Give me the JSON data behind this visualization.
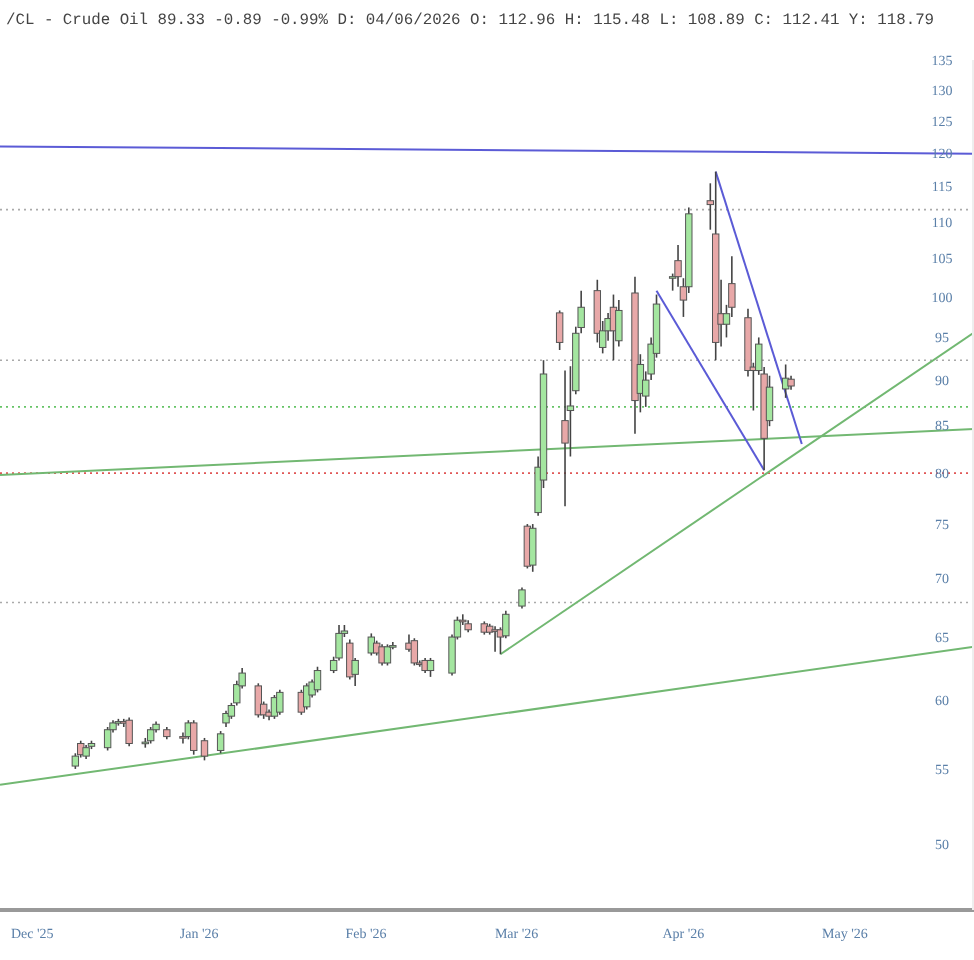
{
  "chart_data": {
    "type": "candlestick",
    "title": "/CL - Crude Oil 89.33 -0.89 -0.99% D: 04/06/2026 O: 112.96 H: 115.48 L: 108.89 C: 112.41 Y: 118.79",
    "x": [
      "2025-12-09",
      "2025-12-10",
      "2025-12-11",
      "2025-12-12",
      "2025-12-15",
      "2025-12-16",
      "2025-12-17",
      "2025-12-18",
      "2025-12-19",
      "2025-12-22",
      "2025-12-23",
      "2025-12-24",
      "2025-12-26",
      "2025-12-29",
      "2025-12-30",
      "2025-12-31",
      "2026-01-02",
      "2026-01-05",
      "2026-01-06",
      "2026-01-07",
      "2026-01-08",
      "2026-01-09",
      "2026-01-12",
      "2026-01-13",
      "2026-01-14",
      "2026-01-15",
      "2026-01-16",
      "2026-01-20",
      "2026-01-21",
      "2026-01-22",
      "2026-01-23",
      "2026-01-26",
      "2026-01-27",
      "2026-01-28",
      "2026-01-29",
      "2026-01-30",
      "2026-02-02",
      "2026-02-03",
      "2026-02-04",
      "2026-02-05",
      "2026-02-06",
      "2026-02-09",
      "2026-02-10",
      "2026-02-11",
      "2026-02-12",
      "2026-02-13",
      "2026-02-17",
      "2026-02-18",
      "2026-02-19",
      "2026-02-20",
      "2026-02-23",
      "2026-02-24",
      "2026-02-25",
      "2026-02-26",
      "2026-02-27",
      "2026-03-02",
      "2026-03-03",
      "2026-03-04",
      "2026-03-05",
      "2026-03-06",
      "2026-03-09",
      "2026-03-10",
      "2026-03-11",
      "2026-03-12",
      "2026-03-13",
      "2026-03-16",
      "2026-03-17",
      "2026-03-18",
      "2026-03-19",
      "2026-03-20",
      "2026-03-23",
      "2026-03-24",
      "2026-03-25",
      "2026-03-26",
      "2026-03-27",
      "2026-03-30",
      "2026-03-31",
      "2026-04-01",
      "2026-04-02",
      "2026-04-06",
      "2026-04-07",
      "2026-04-08",
      "2026-04-09",
      "2026-04-10",
      "2026-04-13",
      "2026-04-14",
      "2026-04-15",
      "2026-04-16",
      "2026-04-17",
      "2026-04-20",
      "2026-04-21"
    ],
    "ohlc": [
      [
        55.2,
        56.1,
        55.0,
        55.9
      ],
      [
        56.8,
        57.0,
        55.8,
        56.0
      ],
      [
        55.9,
        56.7,
        55.7,
        56.5
      ],
      [
        56.6,
        57.0,
        56.4,
        56.8
      ],
      [
        56.5,
        58.0,
        56.3,
        57.8
      ],
      [
        57.8,
        58.5,
        57.6,
        58.3
      ],
      [
        58.3,
        58.6,
        58.1,
        58.4
      ],
      [
        58.4,
        58.6,
        58.0,
        58.3
      ],
      [
        58.5,
        58.7,
        56.6,
        56.8
      ],
      [
        56.8,
        57.2,
        56.5,
        56.9
      ],
      [
        57.0,
        58.0,
        56.8,
        57.8
      ],
      [
        57.8,
        58.4,
        57.6,
        58.2
      ],
      [
        57.8,
        58.0,
        57.1,
        57.3
      ],
      [
        57.3,
        57.6,
        56.8,
        57.2
      ],
      [
        57.3,
        58.5,
        57.1,
        58.3
      ],
      [
        58.3,
        58.5,
        56.0,
        56.3
      ],
      [
        57.0,
        57.2,
        55.6,
        55.9
      ],
      [
        56.3,
        57.7,
        56.1,
        57.5
      ],
      [
        58.3,
        59.2,
        58.0,
        59.0
      ],
      [
        58.8,
        59.8,
        58.6,
        59.6
      ],
      [
        59.8,
        61.5,
        59.6,
        61.2
      ],
      [
        61.1,
        62.5,
        60.9,
        62.1
      ],
      [
        61.1,
        61.3,
        58.7,
        58.9
      ],
      [
        59.7,
        59.9,
        58.6,
        58.9
      ],
      [
        59.1,
        59.3,
        58.5,
        58.8
      ],
      [
        58.8,
        60.4,
        58.6,
        60.2
      ],
      [
        59.1,
        60.8,
        58.9,
        60.6
      ],
      [
        60.6,
        60.8,
        58.9,
        59.1
      ],
      [
        59.5,
        61.3,
        59.3,
        61.1
      ],
      [
        60.4,
        61.6,
        60.2,
        61.4
      ],
      [
        60.8,
        62.6,
        60.6,
        62.3
      ],
      [
        62.3,
        63.4,
        62.1,
        63.1
      ],
      [
        63.3,
        66.0,
        63.1,
        65.3
      ],
      [
        65.3,
        66.0,
        65.0,
        65.5
      ],
      [
        64.5,
        64.8,
        61.6,
        61.8
      ],
      [
        62.0,
        63.3,
        61.1,
        63.1
      ],
      [
        63.7,
        65.3,
        63.5,
        65.0
      ],
      [
        64.5,
        64.7,
        63.5,
        63.7
      ],
      [
        64.2,
        64.4,
        62.7,
        62.9
      ],
      [
        62.9,
        64.4,
        62.7,
        64.2
      ],
      [
        64.2,
        64.6,
        64.0,
        64.3
      ],
      [
        64.5,
        65.2,
        63.8,
        64.0
      ],
      [
        64.7,
        64.9,
        62.7,
        62.9
      ],
      [
        62.9,
        63.1,
        62.6,
        62.8
      ],
      [
        63.1,
        63.3,
        62.1,
        62.3
      ],
      [
        62.3,
        63.3,
        61.8,
        63.1
      ],
      [
        62.1,
        65.2,
        61.9,
        65.0
      ],
      [
        65.0,
        66.7,
        64.8,
        66.4
      ],
      [
        66.4,
        66.9,
        66.0,
        66.3
      ],
      [
        66.1,
        66.4,
        65.4,
        65.6
      ],
      [
        66.1,
        66.3,
        65.2,
        65.4
      ],
      [
        65.9,
        66.1,
        65.2,
        65.4
      ],
      [
        65.6,
        65.9,
        63.8,
        65.5
      ],
      [
        65.6,
        65.8,
        63.6,
        65.0
      ],
      [
        65.1,
        67.2,
        64.9,
        66.9
      ],
      [
        67.6,
        69.2,
        67.4,
        69.0
      ],
      [
        74.8,
        75.0,
        70.9,
        71.1
      ],
      [
        71.2,
        75.0,
        70.6,
        74.6
      ],
      [
        76.1,
        81.7,
        75.8,
        80.6
      ],
      [
        79.3,
        92.3,
        78.5,
        90.7
      ],
      [
        98.0,
        98.3,
        93.5,
        94.4
      ],
      [
        85.5,
        91.1,
        76.7,
        83.1
      ],
      [
        86.6,
        91.6,
        81.7,
        87.1
      ],
      [
        88.8,
        96.3,
        88.4,
        95.5
      ],
      [
        96.2,
        100.8,
        95.5,
        98.7
      ],
      [
        100.8,
        102.2,
        94.4,
        95.5
      ],
      [
        93.8,
        97.0,
        93.1,
        95.8
      ],
      [
        95.8,
        98.0,
        94.6,
        97.3
      ],
      [
        98.7,
        100.3,
        92.3,
        95.8
      ],
      [
        94.6,
        99.6,
        93.9,
        98.3
      ],
      [
        100.5,
        102.6,
        84.1,
        87.7
      ],
      [
        88.5,
        93.0,
        86.4,
        91.8
      ],
      [
        88.2,
        91.0,
        87.0,
        90.0
      ],
      [
        90.7,
        95.0,
        90.0,
        94.2
      ],
      [
        93.1,
        100.3,
        92.6,
        99.1
      ],
      [
        102.4,
        103.0,
        100.8,
        102.6
      ],
      [
        104.7,
        106.8,
        101.3,
        102.6
      ],
      [
        101.3,
        102.4,
        97.5,
        99.6
      ],
      [
        101.3,
        112.0,
        100.5,
        111.1
      ],
      [
        112.96,
        115.48,
        108.89,
        112.41
      ],
      [
        108.3,
        117.2,
        92.3,
        94.4
      ],
      [
        97.9,
        102.2,
        93.9,
        96.6
      ],
      [
        96.6,
        99.0,
        95.0,
        97.9
      ],
      [
        101.7,
        105.3,
        97.5,
        98.7
      ],
      [
        97.4,
        98.5,
        90.4,
        91.1
      ],
      [
        91.5,
        92.0,
        86.6,
        91.1
      ],
      [
        91.1,
        95.0,
        90.6,
        94.2
      ],
      [
        90.7,
        91.5,
        80.3,
        83.6
      ],
      [
        85.5,
        90.5,
        84.9,
        89.2
      ],
      [
        89.0,
        91.8,
        88.0,
        90.22
      ],
      [
        90.1,
        90.5,
        88.9,
        89.33
      ]
    ],
    "series": [
      {
        "type": "line",
        "color": "#5b5bd6",
        "x": [
          "2025-11-25",
          "2026-05-25"
        ],
        "values": [
          121.0,
          119.9
        ]
      },
      {
        "type": "line",
        "color": "#72b872",
        "x": [
          "2025-11-25",
          "2026-05-25"
        ],
        "values": [
          79.8,
          84.6
        ]
      },
      {
        "type": "line",
        "color": "#72b872",
        "x": [
          "2025-11-25",
          "2026-05-25"
        ],
        "values": [
          53.9,
          64.2
        ]
      },
      {
        "type": "line",
        "color": "#72b872",
        "x": [
          "2026-02-26",
          "2026-05-25"
        ],
        "values": [
          63.6,
          95.6
        ]
      },
      {
        "type": "line",
        "color": "#5b5bd6",
        "x": [
          "2026-04-07",
          "2026-04-23"
        ],
        "values": [
          117.2,
          83.0
        ]
      },
      {
        "type": "line",
        "color": "#5b5bd6",
        "x": [
          "2026-03-27",
          "2026-04-16"
        ],
        "values": [
          100.8,
          80.3
        ]
      }
    ],
    "ref_lines": [
      {
        "axis": "y",
        "value": 111.7,
        "color": "#aaaaaa",
        "line_style": "dotted"
      },
      {
        "axis": "y",
        "value": 92.3,
        "color": "#aaaaaa",
        "line_style": "dotted"
      },
      {
        "axis": "y",
        "value": 87.0,
        "color": "#66c466",
        "line_style": "dotted"
      },
      {
        "axis": "y",
        "value": 80.0,
        "color": "#e05555",
        "line_style": "dotted"
      },
      {
        "axis": "y",
        "value": 67.9,
        "color": "#aaaaaa",
        "line_style": "dotted"
      }
    ],
    "log": true,
    "ylim": [
      46,
      135
    ],
    "yticks": [
      50,
      55,
      60,
      65,
      70,
      75,
      80,
      85,
      90,
      95,
      100,
      105,
      110,
      115,
      120,
      125,
      130,
      135
    ],
    "xlim": [
      "2025-11-25",
      "2026-05-25"
    ],
    "xticks": [
      {
        "value": "2025-12-01",
        "label": "Dec '25"
      },
      {
        "value": "2026-01-01",
        "label": "Jan '26"
      },
      {
        "value": "2026-02-01",
        "label": "Feb '26"
      },
      {
        "value": "2026-03-01",
        "label": "Mar '26"
      },
      {
        "value": "2026-04-01",
        "label": "Apr '26"
      },
      {
        "value": "2026-05-01",
        "label": "May '26"
      }
    ]
  }
}
